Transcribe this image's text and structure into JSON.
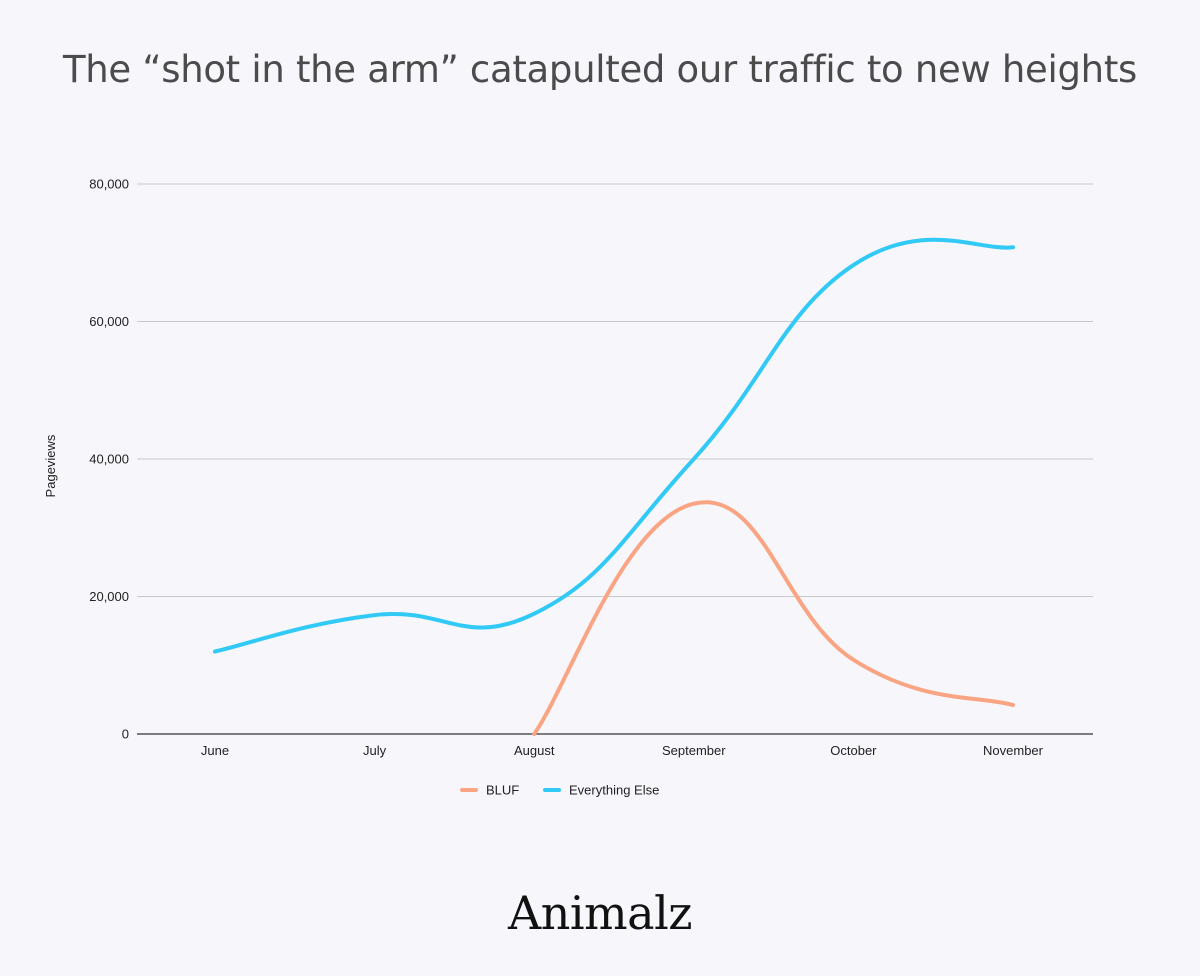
{
  "page": {
    "brand": "Animalz"
  },
  "chart_data": {
    "type": "line",
    "title": "The “shot in the arm” catapulted our traffic to new heights",
    "xlabel": "",
    "ylabel": "Pageviews",
    "categories": [
      "June",
      "July",
      "August",
      "September",
      "October",
      "November"
    ],
    "y_ticks": [
      "0",
      "20,000",
      "40,000",
      "60,000",
      "80,000"
    ],
    "y_tick_values": [
      0,
      20000,
      40000,
      60000,
      80000
    ],
    "ylim": [
      0,
      80000
    ],
    "grid": true,
    "legend_position": "bottom",
    "smooth": true,
    "series": [
      {
        "name": "BLUF",
        "color": "#f9a583",
        "points": [
          {
            "x": "August",
            "y": 0
          },
          {
            "x": "September",
            "y": 33500
          },
          {
            "x": "October",
            "y": 10800
          },
          {
            "x": "November",
            "y": 4200
          }
        ]
      },
      {
        "name": "Everything Else",
        "color": "#31c9f6",
        "points": [
          {
            "x": "June",
            "y": 12000
          },
          {
            "x": "July",
            "y": 17300
          },
          {
            "x": "August",
            "y": 17500
          },
          {
            "x": "September",
            "y": 40000
          },
          {
            "x": "October",
            "y": 68200
          },
          {
            "x": "November",
            "y": 70800
          }
        ]
      }
    ]
  }
}
